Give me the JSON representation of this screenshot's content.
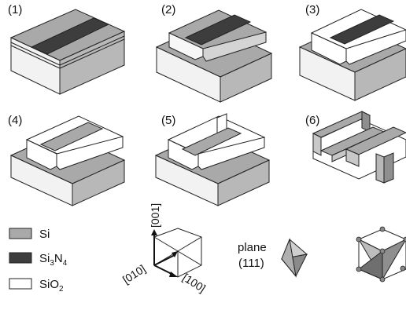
{
  "steps": [
    {
      "label": "(1)"
    },
    {
      "label": "(2)"
    },
    {
      "label": "(3)"
    },
    {
      "label": "(4)"
    },
    {
      "label": "(5)"
    },
    {
      "label": "(6)"
    }
  ],
  "legend": [
    {
      "base": "Si",
      "sub1": "",
      "mid": "",
      "sub2": "",
      "color": "#a9a9a9"
    },
    {
      "base": "Si",
      "sub1": "3",
      "mid": "N",
      "sub2": "4",
      "color": "#3d3d3d"
    },
    {
      "base": "SiO",
      "sub1": "2",
      "mid": "",
      "sub2": "",
      "color": "#ffffff"
    }
  ],
  "axes": {
    "z": "[001]",
    "y": "[010]",
    "x": "[100]"
  },
  "plane": {
    "line1": "plane",
    "line2": "(111)"
  },
  "colors": {
    "si_top": "#a9a9a9",
    "si_front": "#f2f2f2",
    "si_side": "#b8b8b8",
    "nitride": "#3d3d3d",
    "oxide": "#ffffff",
    "stroke": "#222222"
  }
}
